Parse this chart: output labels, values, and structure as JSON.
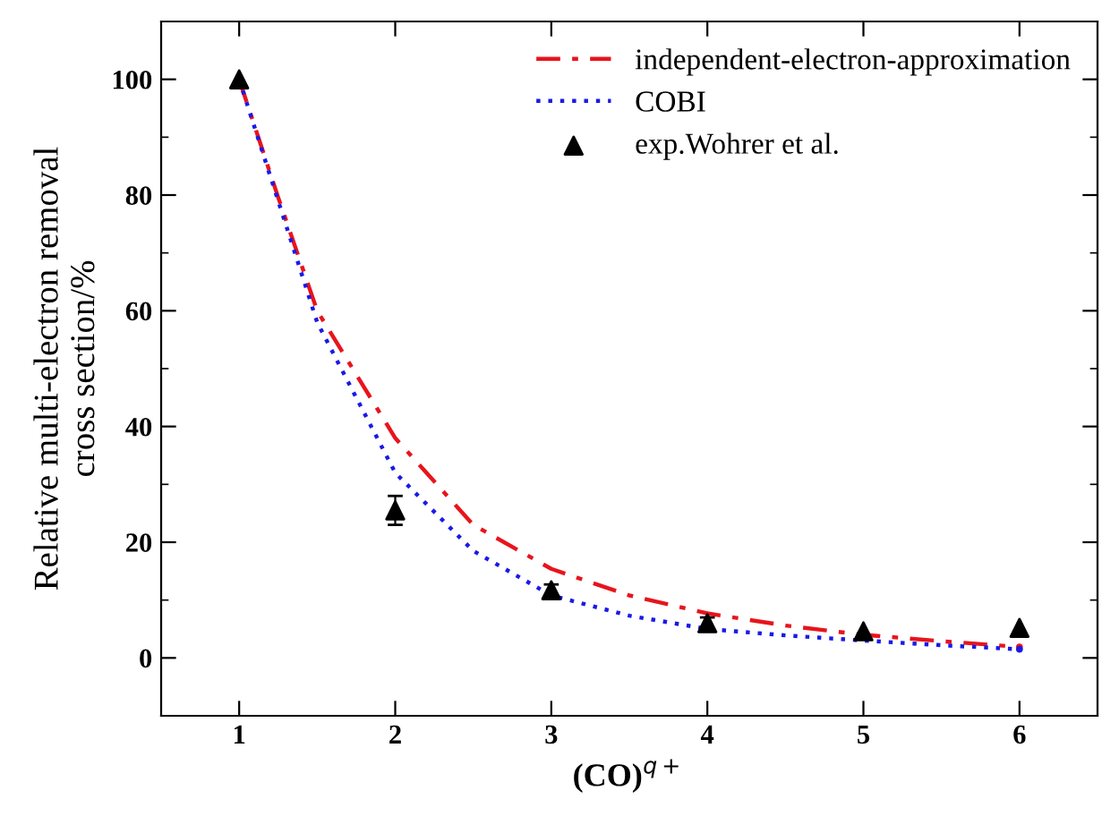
{
  "chart_data": {
    "type": "line",
    "xlabel": "(CO)$^{q+}$",
    "ylabel": "Relative multi-electron removal\ncross section/%",
    "xlim": [
      0.5,
      6.5
    ],
    "xticks": [
      1,
      2,
      3,
      4,
      5,
      6
    ],
    "ylim": [
      -10,
      110
    ],
    "yticks": [
      0,
      20,
      40,
      60,
      80,
      100
    ],
    "legend": "top right",
    "grid": false,
    "series": [
      {
        "name": "independent-electron-approximation",
        "line_style": "dashdot",
        "color": "#e8141c",
        "x": [
          1,
          1.25,
          1.5,
          2,
          2.5,
          3,
          3.5,
          4,
          4.5,
          5,
          5.5,
          6
        ],
        "values": [
          100,
          79.6,
          60,
          38,
          23,
          15.4,
          10.8,
          7.7,
          5.6,
          4.0,
          2.9,
          1.9
        ]
      },
      {
        "name": "COBI",
        "line_style": "dotted",
        "color": "#1a1ae6",
        "x": [
          1,
          1.25,
          1.5,
          2,
          2.5,
          3,
          3.5,
          4,
          4.5,
          5,
          5.5,
          6
        ],
        "values": [
          100,
          79,
          58,
          32,
          18.5,
          10.8,
          7.3,
          5,
          3.9,
          3,
          2.2,
          1.5
        ]
      },
      {
        "name": "exp.Wohrer et al.",
        "type": "scatter",
        "marker": "triangle",
        "color": "#000000",
        "x": [
          1,
          2,
          3,
          4,
          5,
          6
        ],
        "values": [
          100,
          25.5,
          11.7,
          6,
          4.6,
          5.2
        ],
        "errors": [
          null,
          2.5,
          1,
          1,
          null,
          null
        ]
      }
    ]
  }
}
